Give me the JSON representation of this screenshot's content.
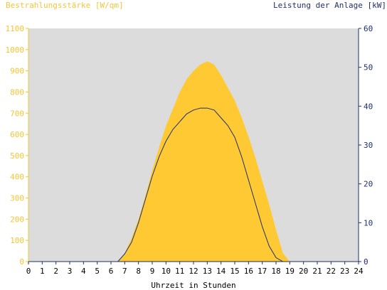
{
  "chart_data": {
    "type": "area",
    "title_left": "Bestrahlungsstärke [W/qm]",
    "title_right": "Leistung der Anlage [kW]",
    "xlabel": "Uhrzeit in Stunden",
    "xlim": [
      0,
      24
    ],
    "ylim_left": [
      0,
      1100
    ],
    "ylim_right": [
      0,
      60
    ],
    "x_ticks": [
      "0",
      "1",
      "2",
      "3",
      "4",
      "5",
      "6",
      "7",
      "8",
      "9",
      "10",
      "11",
      "12",
      "13",
      "14",
      "15",
      "16",
      "17",
      "18",
      "19",
      "20",
      "21",
      "22",
      "23",
      "24"
    ],
    "y_ticks_left": [
      "0",
      "100",
      "200",
      "300",
      "400",
      "500",
      "600",
      "700",
      "800",
      "900",
      "1000",
      "1100"
    ],
    "y_ticks_right": [
      "0",
      "10",
      "20",
      "30",
      "40",
      "50",
      "60"
    ],
    "grid": false,
    "colors": {
      "plot_bg": "#dcdcdc",
      "irradiance": "#ffc933",
      "power": "#1f2f6e",
      "left_axis": "#f5c533",
      "right_axis": "#1f2f6e"
    },
    "series": [
      {
        "axis": "left",
        "x": [
          6.5,
          7.0,
          7.5,
          8.0,
          8.5,
          9.0,
          9.5,
          10.0,
          10.5,
          11.0,
          11.5,
          12.0,
          12.5,
          13.0,
          13.5,
          14.0,
          14.5,
          15.0,
          15.5,
          16.0,
          16.5,
          17.0,
          17.5,
          18.0,
          18.5,
          19.0
        ],
        "values": [
          0,
          40,
          110,
          200,
          310,
          430,
          540,
          640,
          720,
          800,
          860,
          900,
          930,
          945,
          930,
          880,
          820,
          760,
          680,
          590,
          490,
          380,
          270,
          150,
          40,
          0
        ]
      },
      {
        "axis": "right",
        "x": [
          6.5,
          7.0,
          7.5,
          8.0,
          8.5,
          9.0,
          9.5,
          10.0,
          10.5,
          11.0,
          11.5,
          12.0,
          12.5,
          13.0,
          13.5,
          14.0,
          14.5,
          15.0,
          15.5,
          16.0,
          16.5,
          17.0,
          17.5,
          18.0,
          18.5,
          19.0
        ],
        "values": [
          0,
          2,
          5,
          10,
          16,
          22,
          27,
          31,
          34,
          36,
          38,
          39,
          39.5,
          39.5,
          39,
          37,
          35,
          32,
          27,
          21,
          15,
          9,
          4,
          1,
          0,
          0
        ]
      }
    ]
  }
}
